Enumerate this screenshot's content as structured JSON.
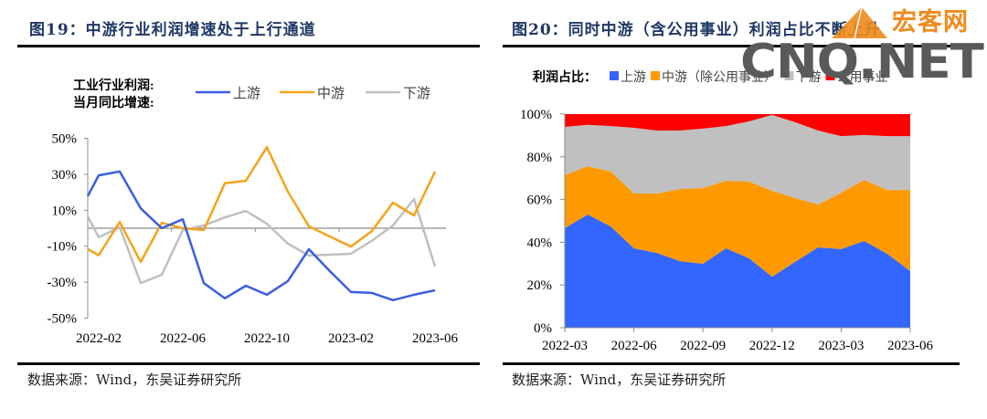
{
  "left_panel": {
    "title": "图19：中游行业利润增速处于上行通道",
    "source": "数据来源：Wind，东吴证券研究所"
  },
  "right_panel": {
    "title": "图20：同时中游（含公用事业）利润占比不断上升",
    "source": "数据来源：Wind，东吴证券研究所"
  },
  "watermark": {
    "brand": "宏客网",
    "domain": "CNQ.NET"
  },
  "chart_data": [
    {
      "type": "line",
      "title": "图19：中游行业利润增速处于上行通道",
      "legend_title": [
        "工业行业利润:",
        "当月同比增速:"
      ],
      "legend_position": "top",
      "x": [
        "2022-01",
        "2022-02",
        "2022-03",
        "2022-04",
        "2022-05",
        "2022-06",
        "2022-07",
        "2022-08",
        "2022-09",
        "2022-10",
        "2022-11",
        "2022-12",
        "2023-01",
        "2023-02",
        "2023-03",
        "2023-04",
        "2023-05",
        "2023-06"
      ],
      "xtick_labels": [
        "2022-02",
        "2022-06",
        "2022-10",
        "2023-02",
        "2023-06"
      ],
      "ytick_labels": [
        "50%",
        "30%",
        "10%",
        "-10%",
        "-30%",
        "-50%"
      ],
      "ylim": [
        -50,
        50
      ],
      "yticks": [
        50,
        30,
        10,
        -10,
        -30,
        -50
      ],
      "series": [
        {
          "name": "上游",
          "color": "#3b5ee0",
          "values": [
            17.8,
            29.4,
            31.5,
            11.0,
            0.0,
            5.0,
            -30.5,
            -39.0,
            -32.0,
            -37.0,
            -29.4,
            -11.7,
            -23.9,
            -35.5,
            -36.0,
            -40.0,
            -37.0,
            -34.5
          ]
        },
        {
          "name": "中游",
          "color": "#f5a31a",
          "values": [
            -11.7,
            -15.0,
            3.5,
            -18.8,
            3.0,
            0.0,
            -1.0,
            25.0,
            26.4,
            45.0,
            20.3,
            1.0,
            -4.6,
            -10.2,
            -1.5,
            14.2,
            7.1,
            31.5
          ]
        },
        {
          "name": "下游",
          "color": "#bfbfbf",
          "values": [
            6.6,
            -5.0,
            0.5,
            -30.5,
            -25.9,
            -1.0,
            1.5,
            6.0,
            9.6,
            2.5,
            -8.6,
            -15.2,
            -14.7,
            -14.2,
            -6.9,
            1.5,
            16.2,
            -21.3
          ]
        }
      ]
    },
    {
      "type": "area",
      "stacked": true,
      "title": "图20：同时中游（含公用事业）利润占比不断上升",
      "legend_title": "利润占比：",
      "legend_position": "top",
      "x": [
        "2022-03",
        "2022-04",
        "2022-05",
        "2022-06",
        "2022-07",
        "2022-08",
        "2022-09",
        "2022-10",
        "2022-11",
        "2022-12",
        "2023-01",
        "2023-02",
        "2023-03",
        "2023-04",
        "2023-05",
        "2023-06"
      ],
      "xtick_labels": [
        "2022-03",
        "2022-06",
        "2022-09",
        "2022-12",
        "2023-03",
        "2023-06"
      ],
      "ytick_labels": [
        "100%",
        "80%",
        "60%",
        "40%",
        "20%",
        "0%"
      ],
      "ylim": [
        0,
        100
      ],
      "yticks": [
        100,
        80,
        60,
        40,
        20,
        0
      ],
      "series": [
        {
          "name": "上游",
          "color": "#3366ff",
          "values": [
            46.6,
            53.0,
            47.4,
            37.2,
            35.0,
            31.2,
            29.9,
            37.2,
            32.5,
            23.9,
            30.8,
            37.6,
            36.8,
            40.6,
            34.6,
            26.5
          ]
        },
        {
          "name": "中游（除公用事业）",
          "color": "#ff9900",
          "values": [
            24.8,
            22.6,
            25.7,
            25.6,
            27.8,
            33.7,
            35.5,
            31.6,
            35.9,
            40.2,
            29.9,
            20.1,
            26.4,
            28.6,
            29.9,
            38.0
          ]
        },
        {
          "name": "下游",
          "color": "#c0c0c0",
          "values": [
            22.6,
            19.4,
            21.3,
            30.8,
            29.5,
            27.4,
            27.8,
            25.6,
            28.2,
            35.5,
            35.5,
            34.6,
            26.5,
            21.0,
            25.2,
            25.2
          ]
        },
        {
          "name": "公用事业",
          "color": "#ff0000",
          "values": [
            6.0,
            5.0,
            5.6,
            6.4,
            7.7,
            7.7,
            6.8,
            5.6,
            3.4,
            0.4,
            3.8,
            7.7,
            10.3,
            9.8,
            10.3,
            10.3
          ]
        }
      ]
    }
  ]
}
